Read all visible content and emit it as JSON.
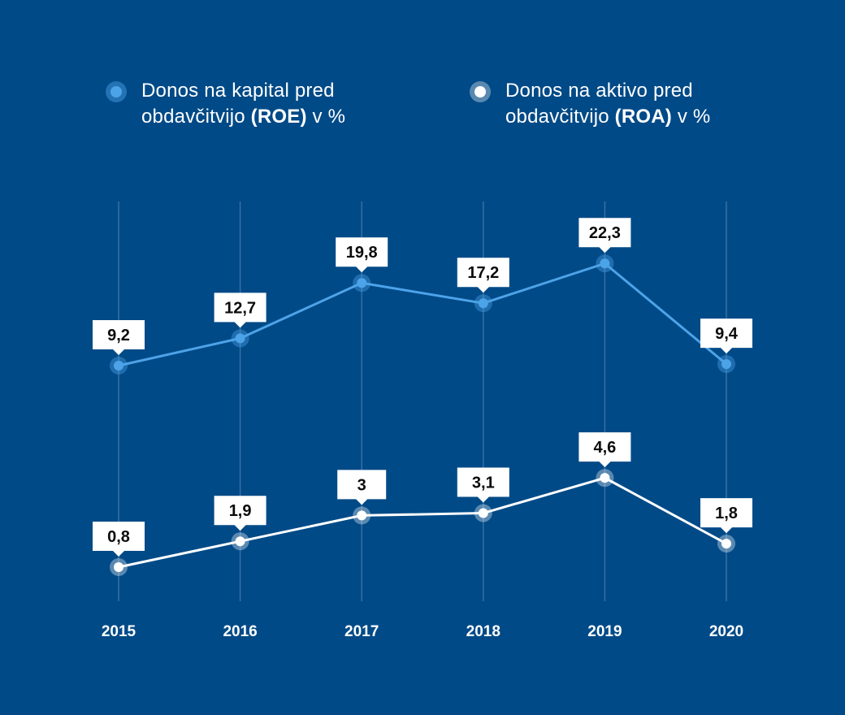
{
  "colors": {
    "background": "#004a87",
    "roe": "#4da3e8",
    "roa": "#ffffff",
    "grid": "#3a6fa3",
    "label_box": "#ffffff",
    "label_text": "#0b0b0b"
  },
  "legend": {
    "roe": {
      "line1": "Donos na kapital pred",
      "line2_prefix": "obdavčitvijo ",
      "line2_bold": "(ROE)",
      "line2_suffix": " v %"
    },
    "roa": {
      "line1": "Donos na aktivo pred",
      "line2_prefix": "obdavčitvijo ",
      "line2_bold": "(ROA)",
      "line2_suffix": " v %"
    }
  },
  "chart_data": {
    "type": "line",
    "title": "",
    "xlabel": "",
    "ylabel": "",
    "grid": "vertical",
    "legend_position": "top",
    "categories": [
      "2015",
      "2016",
      "2017",
      "2018",
      "2019",
      "2020"
    ],
    "series": [
      {
        "name": "Donos na kapital pred obdavčitvijo (ROE) v %",
        "key": "roe",
        "values": [
          9.2,
          12.7,
          19.8,
          17.2,
          22.3,
          9.4
        ],
        "labels": [
          "9,2",
          "12,7",
          "19,8",
          "17,2",
          "22,3",
          "9,4"
        ]
      },
      {
        "name": "Donos na aktivo pred obdavčitvijo (ROA) v %",
        "key": "roa",
        "values": [
          0.8,
          1.9,
          3.0,
          3.1,
          4.6,
          1.8
        ],
        "labels": [
          "0,8",
          "1,9",
          "3",
          "3,1",
          "4,6",
          "1,8"
        ]
      }
    ]
  }
}
